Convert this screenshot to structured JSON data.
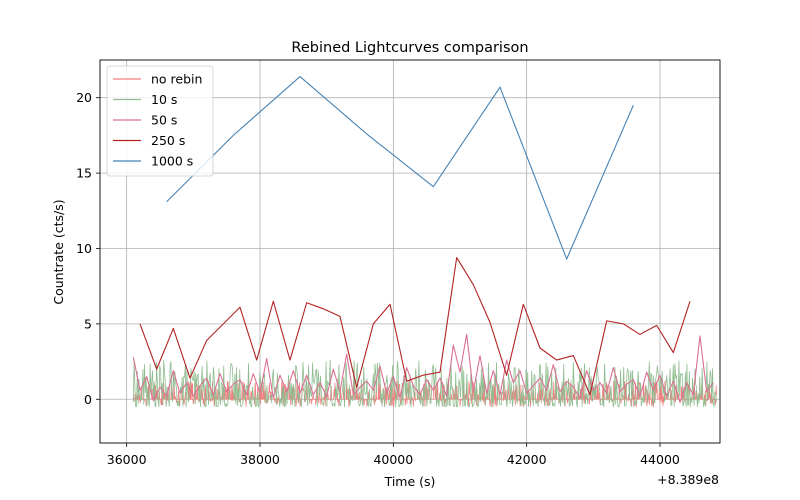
{
  "chart_data": {
    "type": "line",
    "title": "Rebined Lightcurves comparison",
    "xlabel": "Time (s)",
    "ylabel": "Countrate (cts/s)",
    "offset_label": "+8.389e8",
    "xlim": [
      35600,
      44900
    ],
    "ylim": [
      -2.9,
      22.5
    ],
    "xticks": [
      36000,
      38000,
      40000,
      42000,
      44000
    ],
    "xtick_labels": [
      "36000",
      "38000",
      "40000",
      "42000",
      "44000"
    ],
    "yticks": [
      0,
      5,
      10,
      15,
      20
    ],
    "ytick_labels": [
      "0",
      "5",
      "10",
      "15",
      "20"
    ],
    "grid": true,
    "legend_position": "top-left",
    "series": [
      {
        "name": "no rebin",
        "color": "#f08080",
        "bin_s": 1,
        "x": [
          36100,
          44850
        ],
        "y": [
          0,
          0
        ],
        "y_range": [
          -0.5,
          1.2
        ]
      },
      {
        "name": "10 s",
        "color": "#8fbc8f",
        "bin_s": 10,
        "x": [
          36100,
          44850
        ],
        "y": [
          0,
          0
        ],
        "y_range": [
          -0.5,
          2.6
        ]
      },
      {
        "name": "50 s",
        "color": "#db7093",
        "x": [
          36100,
          36200,
          36300,
          36400,
          36500,
          36600,
          36700,
          36800,
          36900,
          37000,
          37100,
          37200,
          37300,
          37400,
          37500,
          37600,
          37700,
          37800,
          37900,
          38000,
          38100,
          38200,
          38300,
          38400,
          38500,
          38600,
          38700,
          38800,
          38900,
          39000,
          39100,
          39200,
          39300,
          39400,
          39500,
          39600,
          39700,
          39800,
          39900,
          40000,
          40100,
          40200,
          40300,
          40400,
          40500,
          40600,
          40700,
          40800,
          40900,
          41000,
          41100,
          41200,
          41300,
          41400,
          41500,
          41600,
          41700,
          41800,
          41900,
          42000,
          42100,
          42200,
          42300,
          42400,
          42500,
          42600,
          42700,
          42800,
          42900,
          43000,
          43100,
          43200,
          43300,
          43400,
          43500,
          43600,
          43700,
          43800,
          43900,
          44000,
          44100,
          44200,
          44300,
          44400,
          44500,
          44600,
          44700,
          44800
        ],
        "y": [
          2.8,
          0.6,
          1.5,
          -0.1,
          0.8,
          0.2,
          1.9,
          0.4,
          1.1,
          0.2,
          0.9,
          1.4,
          0.3,
          1.7,
          0.5,
          1.0,
          1.3,
          0.3,
          1.7,
          0.4,
          2.7,
          0.1,
          1.6,
          0.5,
          1.9,
          0.4,
          1.6,
          0.3,
          1.1,
          0.2,
          2.0,
          0.5,
          3.0,
          0.3,
          0.8,
          1.2,
          0.6,
          2.2,
          0.4,
          1.5,
          0.1,
          2.1,
          0.9,
          0.3,
          1.3,
          0.6,
          1.4,
          0.2,
          3.6,
          1.8,
          4.3,
          0.5,
          2.9,
          0.4,
          1.9,
          0.3,
          2.6,
          1.1,
          1.9,
          0.4,
          0.9,
          1.4,
          0.6,
          2.3,
          0.5,
          1.2,
          0.8,
          0.1,
          1.9,
          0.6,
          1.1,
          0.4,
          2.1,
          0.5,
          1.0,
          1.3,
          0.2,
          1.8,
          0.6,
          1.6,
          0.2,
          1.2,
          -0.2,
          1.1,
          0.3,
          4.2,
          0.5,
          1.1
        ]
      },
      {
        "name": "250 s",
        "color": "#b22222",
        "x": [
          36200,
          36450,
          36700,
          36950,
          37200,
          37450,
          37700,
          37950,
          38200,
          38450,
          38700,
          38950,
          39200,
          39450,
          39700,
          39950,
          40200,
          40450,
          40700,
          40950,
          41200,
          41450,
          41700,
          41950,
          42200,
          42450,
          42700,
          42950,
          43200,
          43450,
          43700,
          43950,
          44200,
          44450
        ],
        "y": [
          5.0,
          2.0,
          4.7,
          1.4,
          3.9,
          5.0,
          6.1,
          2.6,
          6.5,
          2.6,
          6.4,
          6.0,
          5.5,
          0.8,
          5.0,
          6.3,
          1.2,
          1.6,
          1.8,
          9.4,
          7.6,
          5.1,
          1.6,
          6.3,
          3.4,
          2.6,
          2.9,
          0.3,
          5.2,
          5.0,
          4.3,
          4.9,
          3.1,
          6.5
        ]
      },
      {
        "name": "1000 s",
        "color": "#4682b4",
        "x": [
          36600,
          37600,
          38600,
          39600,
          40600,
          41600,
          42600,
          43600
        ],
        "y": [
          13.1,
          17.5,
          21.4,
          17.6,
          14.1,
          20.7,
          9.3,
          19.5
        ]
      }
    ]
  }
}
